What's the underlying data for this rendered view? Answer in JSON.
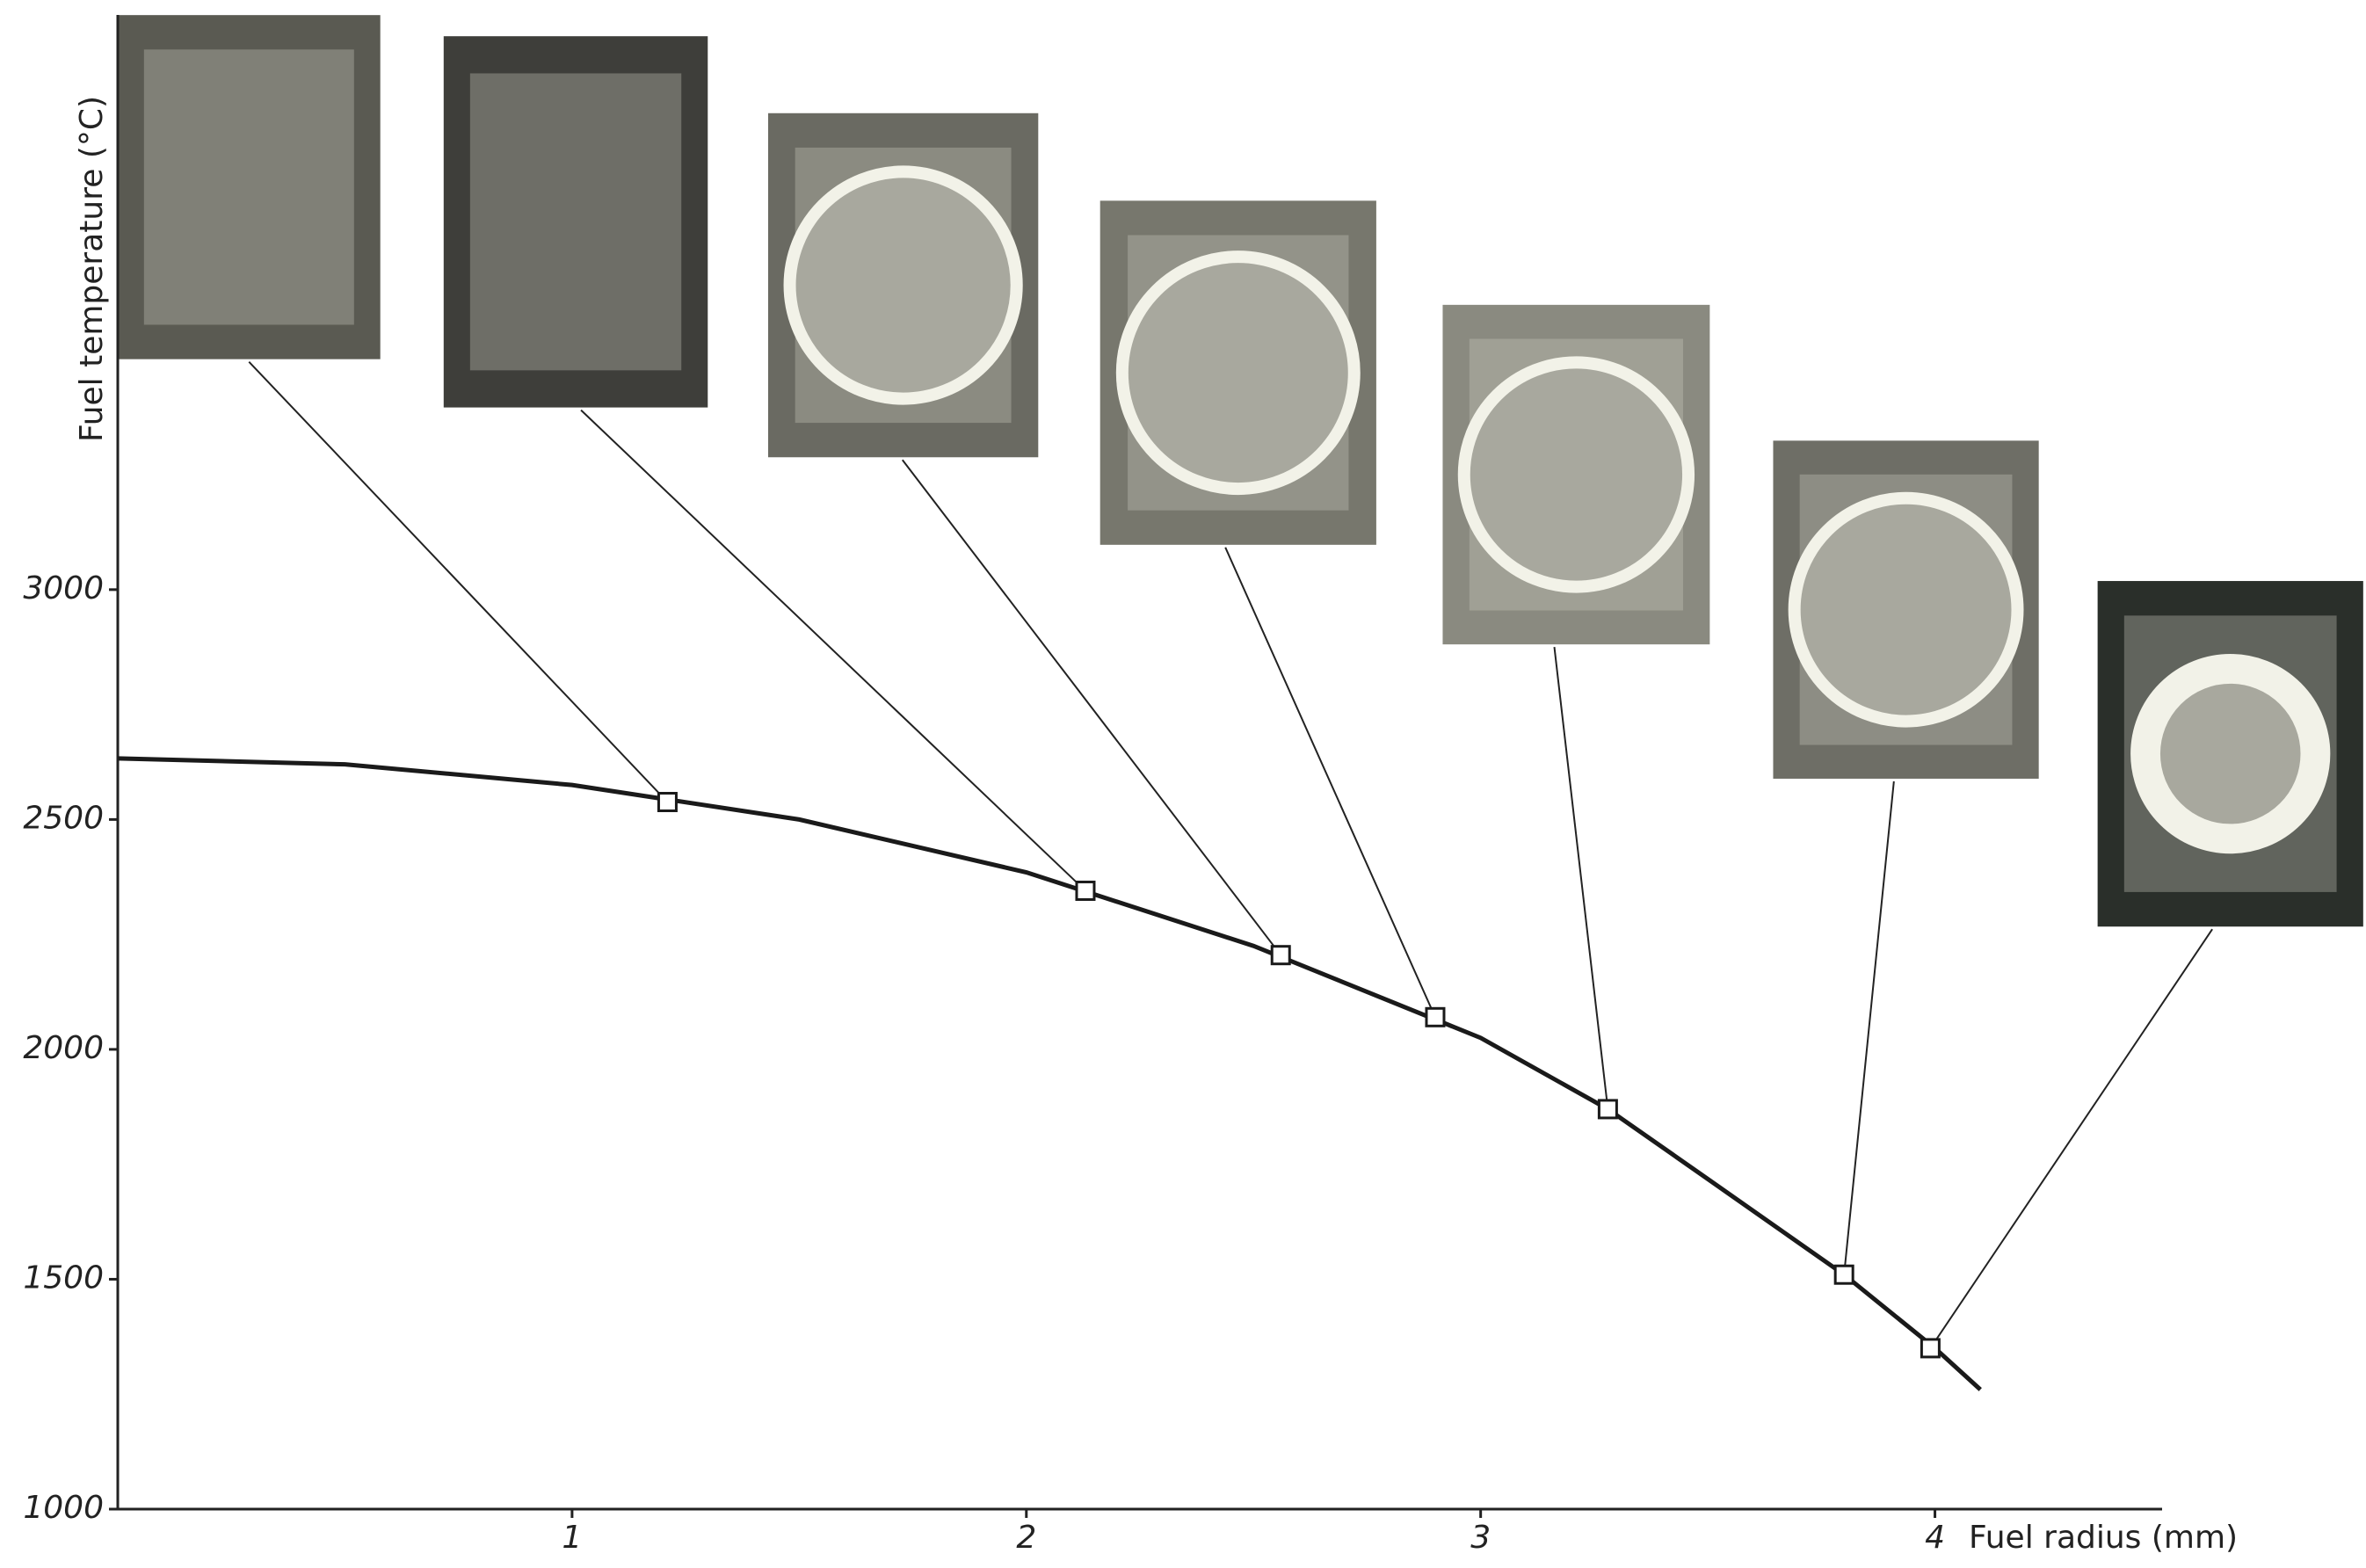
{
  "chart_data": {
    "type": "line",
    "x_label": "Fuel radius (mm)",
    "y_label": "Fuel temperature (°C)",
    "xlim": [
      0,
      4.5
    ],
    "xticks": [
      1,
      2,
      3,
      4
    ],
    "ylim": [
      1000,
      4250
    ],
    "yticks": [
      1000,
      1500,
      2000,
      2500,
      3000
    ],
    "color": "#1a1a1a",
    "curve": {
      "x": [
        0,
        0.5,
        1,
        1.5,
        2,
        2.5,
        3,
        3.28,
        3.5,
        3.8,
        4,
        4.1
      ],
      "values": [
        2633,
        2620,
        2575,
        2500,
        2385,
        2225,
        2025,
        1870,
        1718,
        1510,
        1350,
        1260
      ]
    },
    "points": {
      "x": [
        1.21,
        2.13,
        2.56,
        2.9,
        3.28,
        3.8,
        3.99
      ],
      "values": [
        2538,
        2345,
        2205,
        2070,
        1870,
        1510,
        1350
      ]
    }
  }
}
